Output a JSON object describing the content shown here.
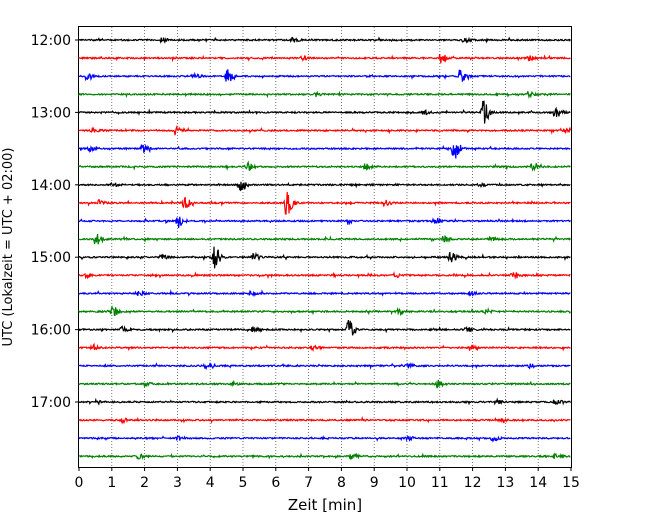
{
  "chart_data": {
    "type": "line",
    "subtype": "helicorder",
    "xlabel": "Zeit  [min]",
    "ylabel": "UTC (Lokalzeit = UTC + 02:00)",
    "xlim": [
      0,
      15
    ],
    "x_ticks": [
      0,
      1,
      2,
      3,
      4,
      5,
      6,
      7,
      8,
      9,
      10,
      11,
      12,
      13,
      14,
      15
    ],
    "x_tick_labels": [
      "0",
      "1",
      "2",
      "3",
      "4",
      "5",
      "6",
      "7",
      "8",
      "9",
      "10",
      "11",
      "12",
      "13",
      "14",
      "15"
    ],
    "y_tick_labels": [
      "12:00",
      "13:00",
      "14:00",
      "15:00",
      "16:00",
      "17:00"
    ],
    "grid": "vertical dotted at each minute",
    "trace_colors": [
      "#000000",
      "#ff0000",
      "#0000ff",
      "#008000"
    ],
    "traces": [
      {
        "start": "12:00",
        "color": "#000000",
        "events": [
          [
            2.5,
            2
          ],
          [
            6.5,
            2
          ],
          [
            11.7,
            2
          ]
        ]
      },
      {
        "start": "12:15",
        "color": "#ff0000",
        "events": [
          [
            11.0,
            6
          ],
          [
            6.8,
            2
          ],
          [
            13.7,
            2.5
          ]
        ]
      },
      {
        "start": "12:30",
        "color": "#0000ff",
        "events": [
          [
            4.5,
            9
          ],
          [
            11.6,
            6
          ],
          [
            0.2,
            2.5
          ],
          [
            3.5,
            2
          ]
        ]
      },
      {
        "start": "12:45",
        "color": "#008000",
        "events": [
          [
            13.7,
            3
          ],
          [
            7.2,
            2
          ]
        ]
      },
      {
        "start": "13:00",
        "color": "#000000",
        "events": [
          [
            12.3,
            12
          ],
          [
            14.5,
            6
          ],
          [
            10.5,
            2
          ]
        ]
      },
      {
        "start": "13:15",
        "color": "#ff0000",
        "events": [
          [
            2.9,
            4
          ],
          [
            0.4,
            2
          ],
          [
            14.8,
            2
          ]
        ]
      },
      {
        "start": "13:30",
        "color": "#0000ff",
        "events": [
          [
            11.4,
            12
          ],
          [
            1.9,
            4
          ],
          [
            0.3,
            2.5
          ]
        ]
      },
      {
        "start": "13:45",
        "color": "#008000",
        "events": [
          [
            5.1,
            5
          ],
          [
            8.7,
            3
          ],
          [
            13.8,
            3
          ]
        ]
      },
      {
        "start": "14:00",
        "color": "#000000",
        "events": [
          [
            4.9,
            5
          ],
          [
            1.0,
            2
          ],
          [
            12.2,
            2
          ]
        ]
      },
      {
        "start": "14:15",
        "color": "#ff0000",
        "events": [
          [
            6.3,
            14
          ],
          [
            3.2,
            6
          ],
          [
            0.6,
            2.5
          ],
          [
            9.3,
            3
          ]
        ]
      },
      {
        "start": "14:30",
        "color": "#0000ff",
        "events": [
          [
            3.0,
            6
          ],
          [
            10.8,
            4
          ],
          [
            8.2,
            2
          ]
        ]
      },
      {
        "start": "14:45",
        "color": "#008000",
        "events": [
          [
            0.5,
            6
          ],
          [
            11.1,
            3
          ],
          [
            12.5,
            2
          ]
        ]
      },
      {
        "start": "15:00",
        "color": "#000000",
        "events": [
          [
            4.1,
            12
          ],
          [
            5.3,
            4
          ],
          [
            11.3,
            5
          ],
          [
            2.5,
            2
          ]
        ]
      },
      {
        "start": "15:15",
        "color": "#ff0000",
        "events": [
          [
            13.2,
            4
          ],
          [
            9.6,
            2
          ],
          [
            0.2,
            2
          ]
        ]
      },
      {
        "start": "15:30",
        "color": "#0000ff",
        "events": [
          [
            5.2,
            3
          ],
          [
            11.9,
            2
          ],
          [
            1.8,
            2
          ]
        ]
      },
      {
        "start": "15:45",
        "color": "#008000",
        "events": [
          [
            1.0,
            5
          ],
          [
            9.7,
            3
          ],
          [
            12.4,
            2
          ]
        ]
      },
      {
        "start": "16:00",
        "color": "#000000",
        "events": [
          [
            8.2,
            10
          ],
          [
            5.3,
            3
          ],
          [
            1.3,
            3
          ],
          [
            11.8,
            2.5
          ]
        ]
      },
      {
        "start": "16:15",
        "color": "#ff0000",
        "events": [
          [
            0.4,
            3
          ],
          [
            11.9,
            3
          ],
          [
            7.1,
            2
          ]
        ]
      },
      {
        "start": "16:30",
        "color": "#0000ff",
        "events": [
          [
            3.8,
            3
          ],
          [
            10.0,
            2
          ],
          [
            13.7,
            2
          ]
        ]
      },
      {
        "start": "16:45",
        "color": "#008000",
        "events": [
          [
            10.9,
            4
          ],
          [
            4.6,
            2
          ],
          [
            2.0,
            2
          ]
        ]
      },
      {
        "start": "17:00",
        "color": "#000000",
        "events": [
          [
            14.5,
            3
          ],
          [
            12.7,
            2
          ],
          [
            0.5,
            2
          ]
        ]
      },
      {
        "start": "17:15",
        "color": "#ff0000",
        "events": [
          [
            12.8,
            2
          ],
          [
            1.3,
            2
          ]
        ]
      },
      {
        "start": "17:30",
        "color": "#0000ff",
        "events": [
          [
            12.6,
            2.5
          ],
          [
            10.0,
            2
          ],
          [
            3.0,
            2
          ]
        ]
      },
      {
        "start": "17:45",
        "color": "#008000",
        "events": [
          [
            8.3,
            3
          ],
          [
            14.5,
            2
          ],
          [
            1.8,
            2
          ]
        ]
      }
    ]
  }
}
